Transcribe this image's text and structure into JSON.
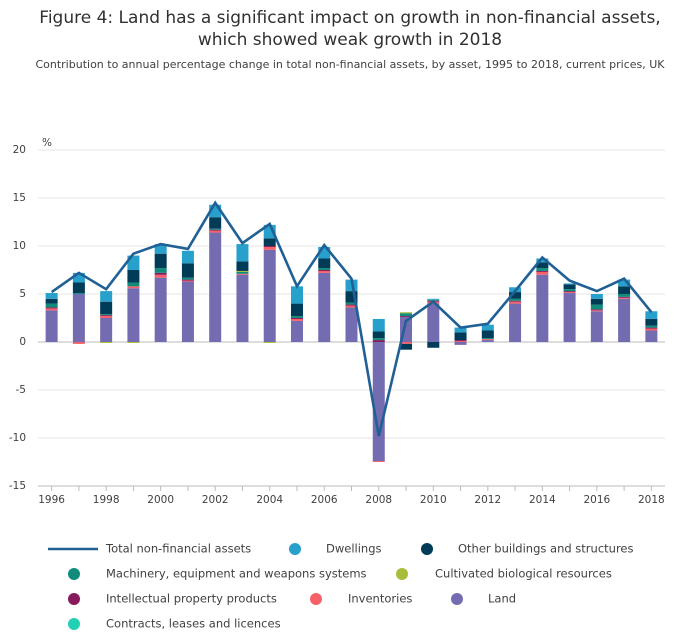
{
  "chart_data": {
    "type": "bar",
    "title": "Figure 4: Land has a significant impact on growth in non-financial assets, which showed weak growth in 2018",
    "subtitle": "Contribution to annual percentage change in total non-financial assets, by asset, 1995 to 2018, current prices, UK",
    "y_label": "%",
    "categories": [
      "1996",
      null,
      "1998",
      null,
      "2000",
      null,
      "2002",
      null,
      "2004",
      null,
      "2006",
      null,
      "2008",
      null,
      "2010",
      null,
      "2012",
      null,
      "2014",
      null,
      "2016",
      null,
      "2018"
    ],
    "ylim": [
      -15,
      20
    ],
    "yticks": [
      20,
      15,
      10,
      5,
      0,
      -5,
      -10,
      -15
    ],
    "grid": true,
    "stacked": true,
    "series": [
      {
        "name": "Total non-financial assets",
        "type": "line",
        "color": "#206095",
        "values": [
          5.2,
          7.2,
          5.5,
          9.2,
          10.2,
          9.7,
          14.5,
          10.3,
          12.3,
          5.8,
          10.1,
          6.6,
          -9.8,
          2.2,
          4.2,
          1.5,
          1.9,
          5.3,
          8.8,
          6.4,
          5.3,
          6.6,
          3.1
        ]
      },
      {
        "name": "Dwellings",
        "color": "#27a0cc",
        "values": [
          0.6,
          1.0,
          1.1,
          1.5,
          1.0,
          1.3,
          1.3,
          1.8,
          1.4,
          1.8,
          1.2,
          1.2,
          1.3,
          0,
          0.1,
          0.5,
          0.6,
          0.5,
          0.4,
          0.1,
          0.5,
          0.7,
          0.8
        ]
      },
      {
        "name": "Other buildings and structures",
        "color": "#003c57",
        "values": [
          0.5,
          1.1,
          1.3,
          1.3,
          1.5,
          1.5,
          1.2,
          1.0,
          0.8,
          1.3,
          1.0,
          1.2,
          0.7,
          -0.6,
          -0.6,
          0.8,
          0.8,
          0.7,
          0.6,
          0.5,
          0.6,
          0.8,
          0.7
        ]
      },
      {
        "name": "Machinery, equipment and weapons systems",
        "color": "#118c7b",
        "values": [
          0.4,
          0.1,
          0.1,
          0.4,
          0.5,
          0.2,
          0.1,
          0.2,
          0,
          0.2,
          0.2,
          0.2,
          0.2,
          0.3,
          0.1,
          0,
          0.1,
          0.2,
          0.3,
          0.2,
          0.5,
          0.3,
          0.2
        ]
      },
      {
        "name": "Cultivated biological resources",
        "color": "#a8bd3a",
        "values": [
          0,
          0,
          -0.1,
          -0.1,
          0,
          0,
          0,
          0.1,
          -0.1,
          0,
          0,
          0,
          0,
          0.1,
          0,
          0,
          0,
          0,
          0,
          0,
          0,
          0,
          0
        ]
      },
      {
        "name": "Intellectual property products",
        "color": "#871a5b",
        "values": [
          0.1,
          0,
          0.1,
          0,
          0.2,
          0.1,
          0.1,
          0,
          0.1,
          0.1,
          0.1,
          0.1,
          0.2,
          0.1,
          0.1,
          0.1,
          0,
          0.1,
          0.1,
          0.1,
          0.1,
          0.1,
          0.1
        ]
      },
      {
        "name": "Inventories",
        "color": "#f66068",
        "values": [
          0.2,
          -0.2,
          0.2,
          0.2,
          0.3,
          0.1,
          0.2,
          0.1,
          0.3,
          0.2,
          0.2,
          0.2,
          -0.1,
          -0.2,
          0.2,
          0.1,
          0.1,
          0.2,
          0.3,
          0.1,
          0.1,
          0.1,
          0.2
        ]
      },
      {
        "name": "Land",
        "color": "#746cb1",
        "values": [
          3.3,
          5.0,
          2.5,
          5.6,
          6.7,
          6.3,
          11.4,
          7.0,
          9.6,
          2.2,
          7.2,
          3.6,
          -12.4,
          2.6,
          4.0,
          -0.3,
          0.2,
          4.0,
          7.0,
          5.1,
          3.2,
          4.5,
          1.2
        ]
      },
      {
        "name": "Contracts, leases and licences",
        "color": "#22d0b6",
        "values": [
          0,
          0,
          0,
          0,
          0,
          0,
          0,
          0,
          0,
          0,
          0,
          0,
          0,
          0,
          0,
          0,
          0,
          0,
          0,
          0,
          0,
          0,
          0
        ]
      }
    ]
  }
}
